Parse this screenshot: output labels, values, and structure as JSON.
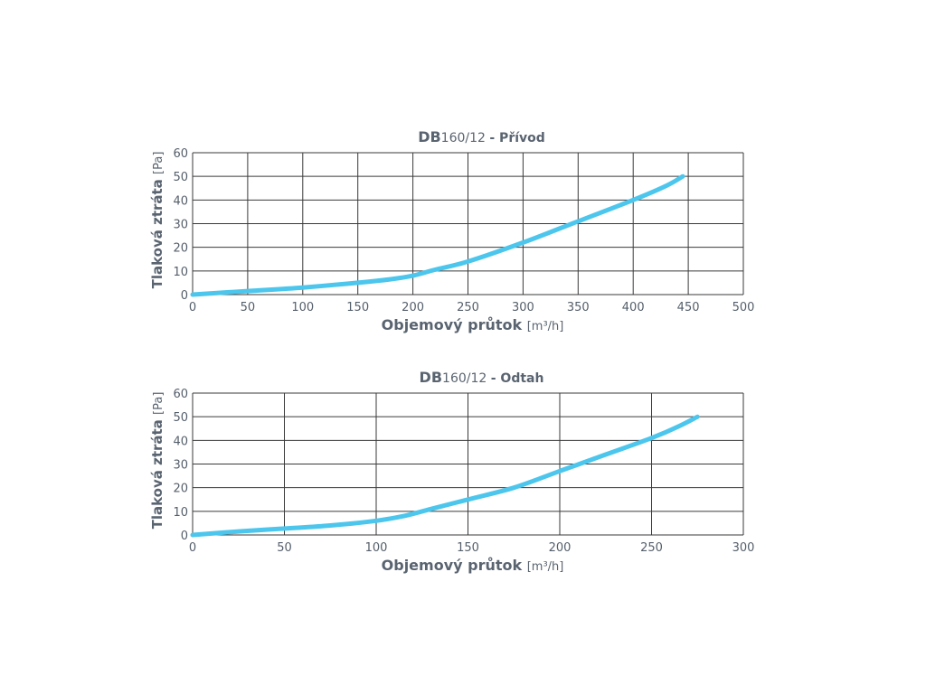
{
  "chart_data": [
    {
      "type": "line",
      "title": {
        "main": "DB",
        "model": "160/12",
        "suffix": "- Přívod"
      },
      "xlabel": "Objemový průtok",
      "xunit": "[m³/h]",
      "ylabel": "Tlaková ztráta",
      "yunit": "[Pa]",
      "xlim": [
        0,
        500
      ],
      "ylim": [
        0,
        60
      ],
      "xticks": [
        0,
        50,
        100,
        150,
        200,
        250,
        300,
        350,
        400,
        450,
        500
      ],
      "yticks": [
        0,
        10,
        20,
        30,
        40,
        50,
        60
      ],
      "grid": true,
      "color": "#4cc6ec",
      "series": [
        {
          "x": [
            0,
            50,
            100,
            150,
            180,
            200,
            220,
            250,
            300,
            350,
            400,
            430,
            445
          ],
          "y": [
            0,
            1.5,
            3,
            5,
            6.5,
            8,
            10.5,
            14,
            22,
            31,
            40,
            46,
            50
          ]
        }
      ]
    },
    {
      "type": "line",
      "title": {
        "main": "DB",
        "model": "160/12",
        "suffix": "- Odtah"
      },
      "xlabel": "Objemový průtok",
      "xunit": "[m³/h]",
      "ylabel": "Tlaková ztráta",
      "yunit": "[Pa]",
      "xlim": [
        0,
        300
      ],
      "ylim": [
        0,
        60
      ],
      "xticks": [
        0,
        50,
        100,
        150,
        200,
        250,
        300
      ],
      "yticks": [
        0,
        10,
        20,
        30,
        40,
        50,
        60
      ],
      "grid": true,
      "color": "#4cc6ec",
      "series": [
        {
          "x": [
            0,
            25,
            50,
            75,
            100,
            115,
            130,
            150,
            175,
            200,
            225,
            250,
            265,
            275
          ],
          "y": [
            0,
            1.5,
            2.7,
            4,
            6,
            8,
            11,
            15,
            20,
            27,
            34,
            41,
            46,
            50
          ]
        }
      ]
    }
  ]
}
